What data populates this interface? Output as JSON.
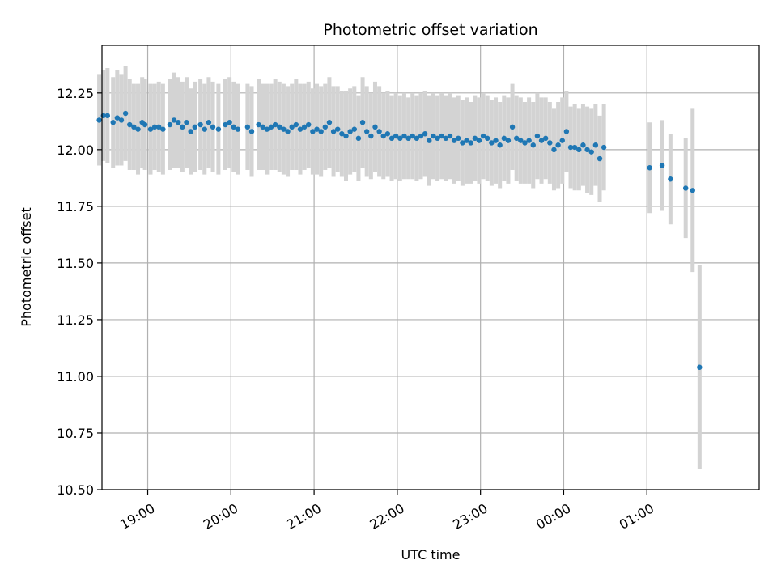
{
  "chart_data": {
    "type": "scatter",
    "title": "Photometric offset variation",
    "xlabel": "UTC time",
    "ylabel": "Photometric offset",
    "x_unit": "hours (UTC, hours after 24 continue past midnight)",
    "xlim": [
      "18:27",
      "02:21"
    ],
    "ylim": [
      10.5,
      12.46
    ],
    "x_ticks": [
      "19:00",
      "20:00",
      "21:00",
      "22:00",
      "23:00",
      "00:00",
      "01:00"
    ],
    "y_ticks": [
      "10.50",
      "10.75",
      "11.00",
      "11.25",
      "11.50",
      "11.75",
      "12.00",
      "12.25"
    ],
    "grid": true,
    "point_color": "#1f77b4",
    "errorbar_color": "#d3d3d3",
    "series": [
      {
        "x": [
          "18:25",
          "18:28",
          "18:31",
          "18:35",
          "18:38",
          "18:41",
          "18:44",
          "18:47",
          "18:50",
          "18:53",
          "18:56",
          "18:58",
          "19:02",
          "19:05",
          "19:08",
          "19:11",
          "19:16",
          "19:19",
          "19:22",
          "19:25",
          "19:28",
          "19:31",
          "19:34",
          "19:38",
          "19:41",
          "19:44",
          "19:47",
          "19:51",
          "19:56",
          "19:59",
          "20:02",
          "20:05",
          "20:12",
          "20:15",
          "20:20",
          "20:23",
          "20:26",
          "20:29",
          "20:32",
          "20:35",
          "20:38",
          "20:41",
          "20:44",
          "20:47",
          "20:50",
          "20:53",
          "20:56",
          "20:59",
          "21:02",
          "21:05",
          "21:08",
          "21:11",
          "21:14",
          "21:17",
          "21:20",
          "21:23",
          "21:26",
          "21:29",
          "21:32",
          "21:35",
          "21:38",
          "21:41",
          "21:44",
          "21:47",
          "21:50",
          "21:53",
          "21:56",
          "21:59",
          "22:02",
          "22:05",
          "22:08",
          "22:11",
          "22:14",
          "22:17",
          "22:20",
          "22:23",
          "22:26",
          "22:29",
          "22:32",
          "22:35",
          "22:38",
          "22:41",
          "22:44",
          "22:47",
          "22:50",
          "22:53",
          "22:56",
          "22:59",
          "23:02",
          "23:05",
          "23:08",
          "23:11",
          "23:14",
          "23:17",
          "23:20",
          "23:23",
          "23:26",
          "23:29",
          "23:32",
          "23:35",
          "23:38",
          "23:41",
          "23:44",
          "23:47",
          "23:50",
          "23:53",
          "23:56",
          "23:59",
          "00:02",
          "00:05",
          "00:08",
          "00:11",
          "00:14",
          "00:17",
          "00:20",
          "00:23",
          "00:26",
          "00:29",
          "01:02",
          "01:11",
          "01:17",
          "01:28",
          "01:33",
          "01:38"
        ],
        "y": [
          12.13,
          12.15,
          12.15,
          12.12,
          12.14,
          12.13,
          12.16,
          12.11,
          12.1,
          12.09,
          12.12,
          12.11,
          12.09,
          12.1,
          12.1,
          12.09,
          12.11,
          12.13,
          12.12,
          12.1,
          12.12,
          12.08,
          12.1,
          12.11,
          12.09,
          12.12,
          12.1,
          12.09,
          12.11,
          12.12,
          12.1,
          12.09,
          12.1,
          12.08,
          12.11,
          12.1,
          12.09,
          12.1,
          12.11,
          12.1,
          12.09,
          12.08,
          12.1,
          12.11,
          12.09,
          12.1,
          12.11,
          12.08,
          12.09,
          12.08,
          12.1,
          12.12,
          12.08,
          12.09,
          12.07,
          12.06,
          12.08,
          12.09,
          12.05,
          12.12,
          12.08,
          12.06,
          12.1,
          12.08,
          12.06,
          12.07,
          12.05,
          12.06,
          12.05,
          12.06,
          12.05,
          12.06,
          12.05,
          12.06,
          12.07,
          12.04,
          12.06,
          12.05,
          12.06,
          12.05,
          12.06,
          12.04,
          12.05,
          12.03,
          12.04,
          12.03,
          12.05,
          12.04,
          12.06,
          12.05,
          12.03,
          12.04,
          12.02,
          12.05,
          12.04,
          12.1,
          12.05,
          12.04,
          12.03,
          12.04,
          12.02,
          12.06,
          12.04,
          12.05,
          12.03,
          12.0,
          12.02,
          12.04,
          12.08,
          12.01,
          12.01,
          12.0,
          12.02,
          12.0,
          11.99,
          12.02,
          11.96,
          12.01,
          11.92,
          11.93,
          11.87,
          11.83,
          11.82,
          11.04
        ],
        "err": [
          0.2,
          0.2,
          0.21,
          0.2,
          0.21,
          0.2,
          0.21,
          0.2,
          0.19,
          0.2,
          0.2,
          0.2,
          0.2,
          0.19,
          0.2,
          0.2,
          0.2,
          0.21,
          0.2,
          0.2,
          0.2,
          0.19,
          0.2,
          0.2,
          0.2,
          0.2,
          0.2,
          0.2,
          0.2,
          0.2,
          0.2,
          0.2,
          0.19,
          0.2,
          0.2,
          0.19,
          0.2,
          0.19,
          0.2,
          0.2,
          0.2,
          0.2,
          0.19,
          0.2,
          0.2,
          0.19,
          0.19,
          0.19,
          0.2,
          0.2,
          0.19,
          0.2,
          0.2,
          0.19,
          0.19,
          0.2,
          0.19,
          0.19,
          0.19,
          0.2,
          0.2,
          0.19,
          0.2,
          0.2,
          0.19,
          0.19,
          0.19,
          0.19,
          0.19,
          0.19,
          0.18,
          0.19,
          0.19,
          0.19,
          0.19,
          0.2,
          0.19,
          0.19,
          0.19,
          0.19,
          0.19,
          0.19,
          0.19,
          0.19,
          0.19,
          0.18,
          0.19,
          0.19,
          0.19,
          0.19,
          0.19,
          0.19,
          0.19,
          0.19,
          0.19,
          0.19,
          0.19,
          0.19,
          0.18,
          0.19,
          0.19,
          0.19,
          0.19,
          0.18,
          0.18,
          0.18,
          0.19,
          0.19,
          0.18,
          0.18,
          0.19,
          0.18,
          0.18,
          0.19,
          0.19,
          0.18,
          0.19,
          0.19,
          0.2,
          0.2,
          0.2,
          0.22,
          0.36,
          0.45
        ]
      }
    ]
  }
}
